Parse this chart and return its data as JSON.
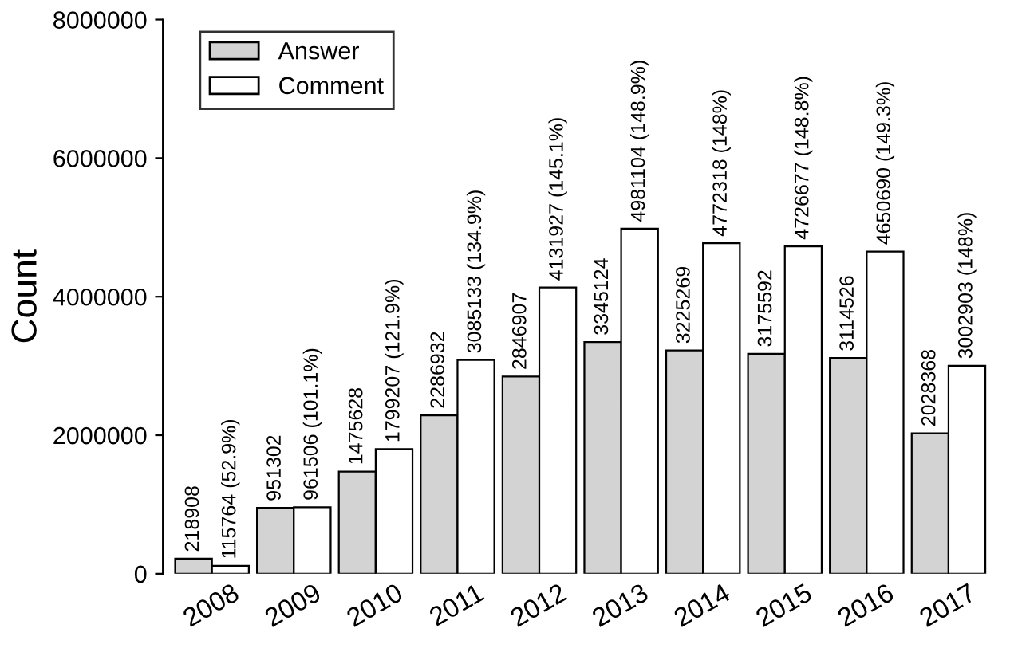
{
  "chart_data": {
    "type": "bar",
    "ylabel": "Count",
    "categories": [
      "2008",
      "2009",
      "2010",
      "2011",
      "2012",
      "2013",
      "2014",
      "2015",
      "2016",
      "2017"
    ],
    "series": [
      {
        "name": "Answer",
        "color": "#d3d3d3",
        "values": [
          218908,
          951302,
          1475628,
          2286932,
          2846907,
          3345124,
          3225269,
          3175592,
          3114526,
          2028368
        ],
        "value_labels": [
          "218908",
          "951302",
          "1475628",
          "2286932",
          "2846907",
          "3345124",
          "3225269",
          "3175592",
          "3114526",
          "2028368"
        ]
      },
      {
        "name": "Comment",
        "color": "#ffffff",
        "values": [
          115764,
          961506,
          1799207,
          3085133,
          4131927,
          4981104,
          4772318,
          4726677,
          4650690,
          3002903
        ],
        "value_labels": [
          "115764 (52.9%)",
          "961506 (101.1%)",
          "1799207 (121.9%)",
          "3085133 (134.9%)",
          "4131927 (145.1%)",
          "4981104 (148.9%)",
          "4772318 (148%)",
          "4726677 (148.8%)",
          "4650690 (149.3%)",
          "3002903 (148%)"
        ]
      }
    ],
    "ylim": [
      0,
      8000000
    ],
    "yticks": [
      0,
      2000000,
      4000000,
      6000000,
      8000000
    ],
    "grid": false,
    "legend": "top left"
  }
}
